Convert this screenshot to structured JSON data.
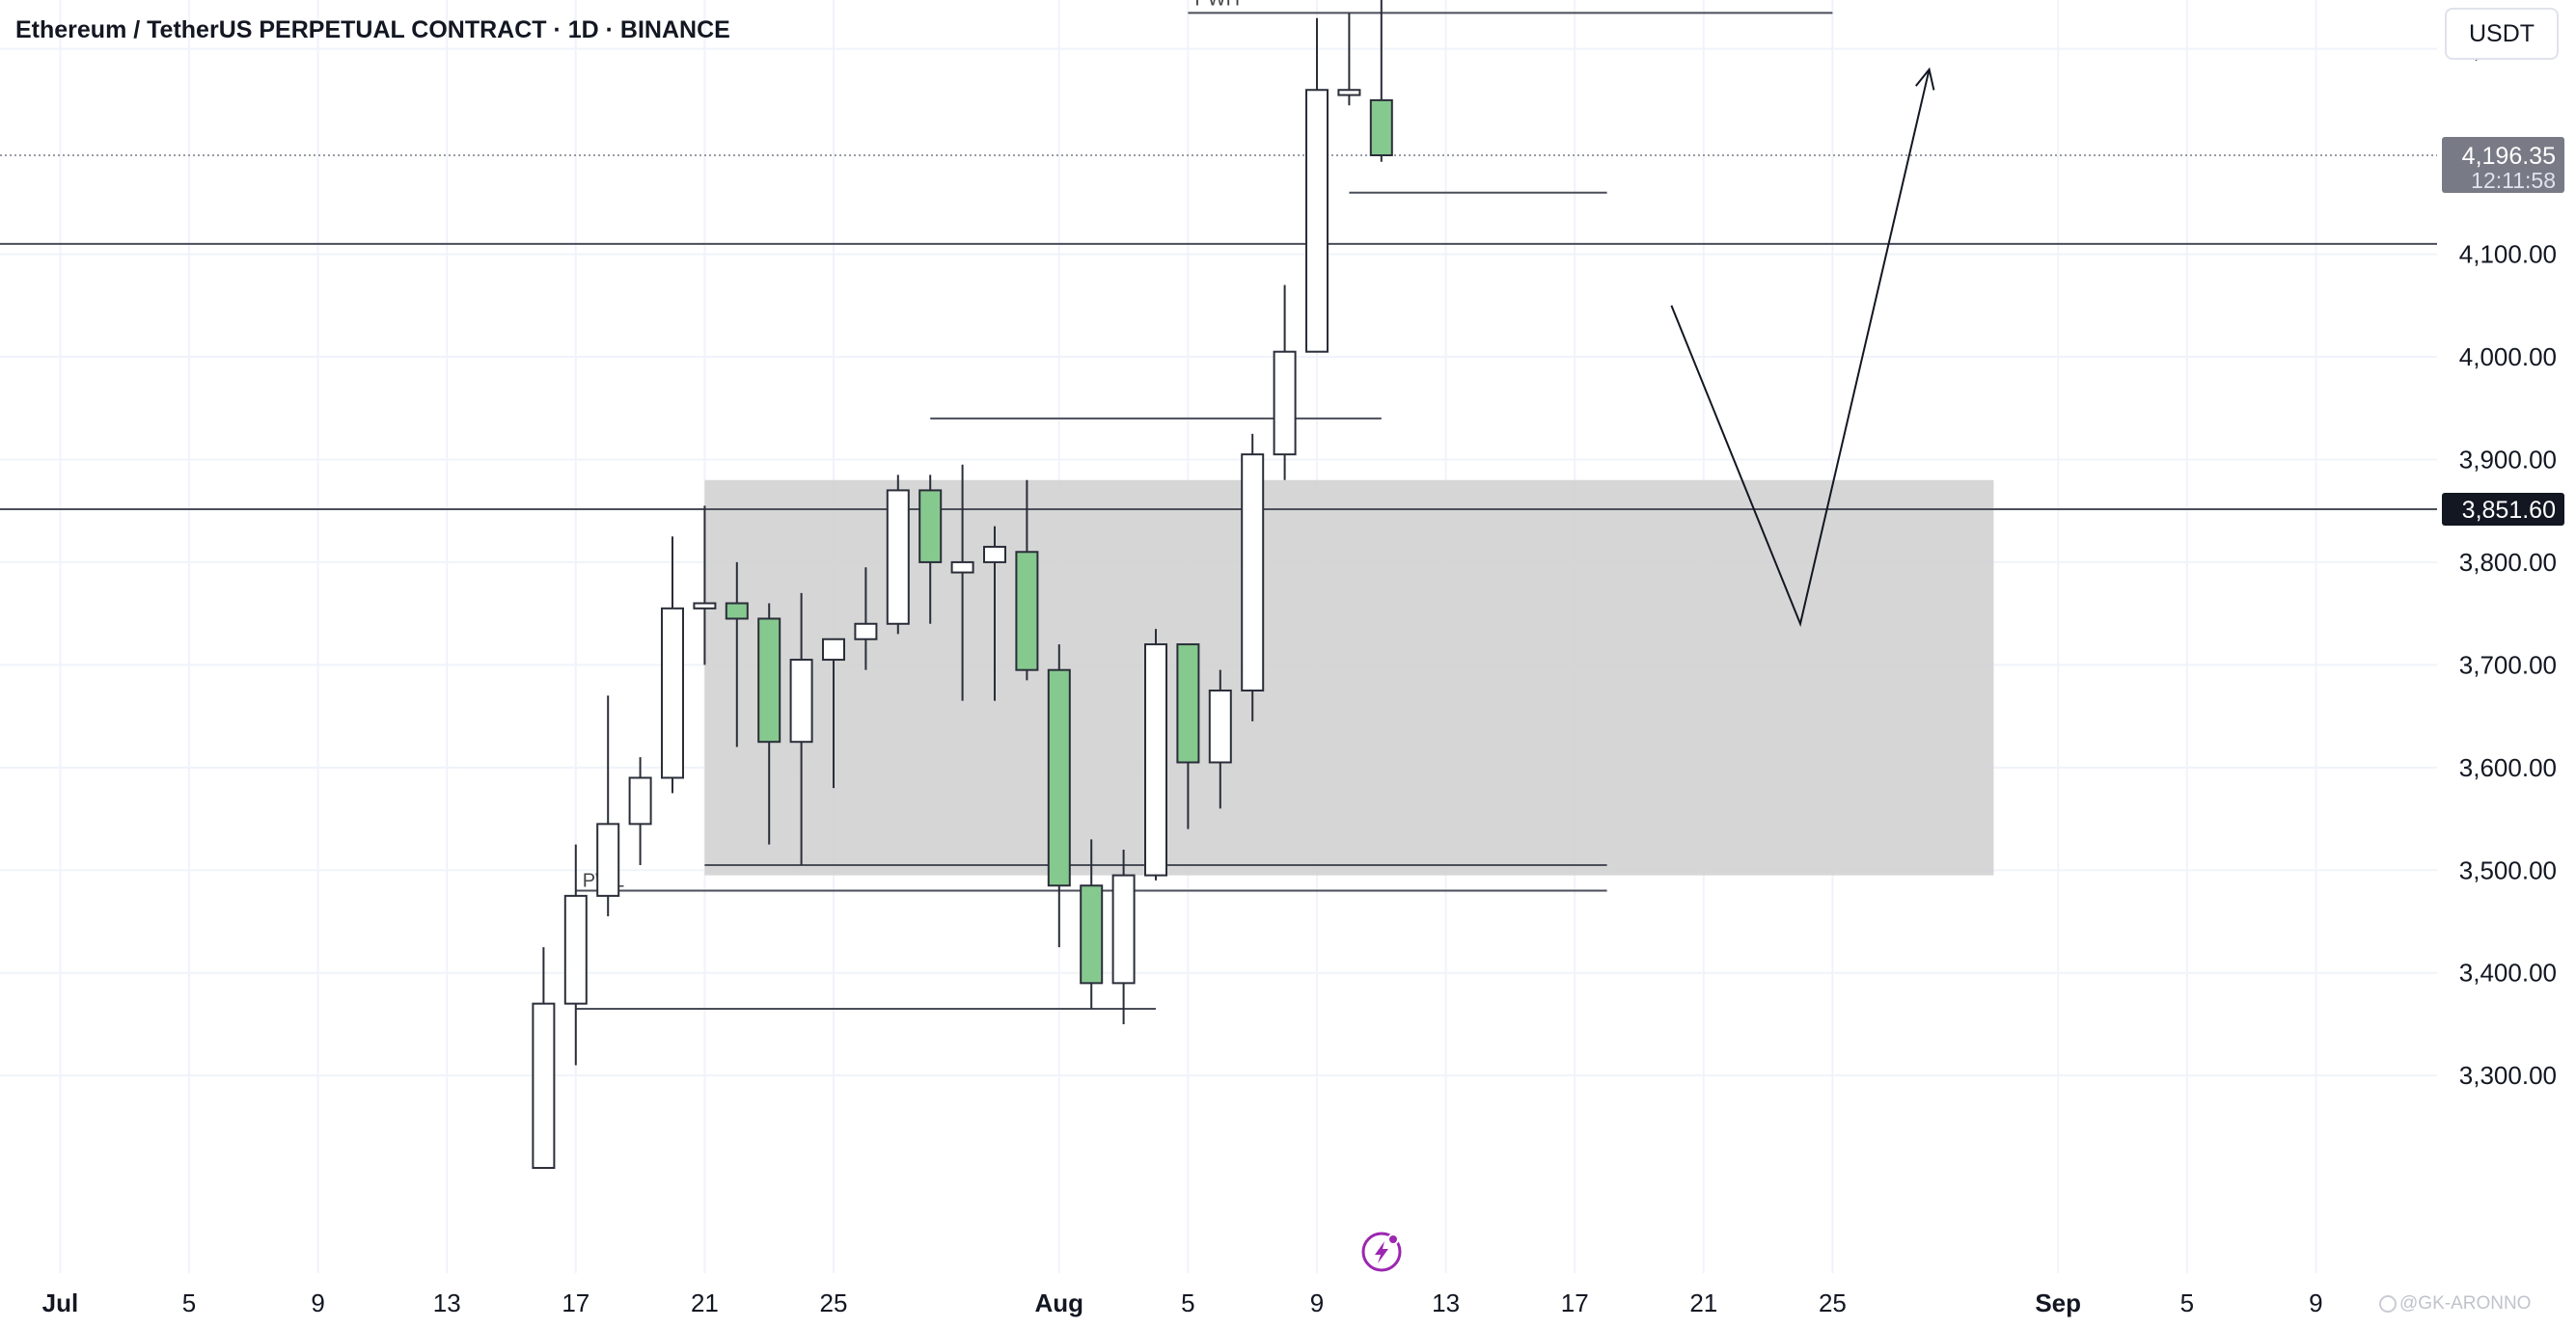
{
  "header": {
    "title": "Ethereum / TetherUS PERPETUAL CONTRACT · 1D · BINANCE",
    "currency": "USDT"
  },
  "watermark": "@GK-ARONNO",
  "colors": {
    "bull_fill": "#ffffff",
    "bear_fill": "#86c98f",
    "candle_stroke": "#2a2e39",
    "zone_fill": "#cfcfcf",
    "line": "#4a4e59",
    "price_label_bg": "#787b86",
    "marker_bg": "#131722",
    "brand_icon": "#9c27b0"
  },
  "chart_data": {
    "type": "candlestick",
    "symbol": "ETHUSDT.P",
    "interval": "1D",
    "ylim": [
      3210,
      4360
    ],
    "x_start": "2024-06-30",
    "x_end": "2024-09-11",
    "y_ticks": [
      {
        "value": 4300,
        "label": "4,300.00"
      },
      {
        "value": 4100,
        "label": "4,100.00"
      },
      {
        "value": 4000,
        "label": "4,000.00"
      },
      {
        "value": 3900,
        "label": "3,900.00"
      },
      {
        "value": 3800,
        "label": "3,800.00"
      },
      {
        "value": 3700,
        "label": "3,700.00"
      },
      {
        "value": 3600,
        "label": "3,600.00"
      },
      {
        "value": 3500,
        "label": "3,500.00"
      },
      {
        "value": 3400,
        "label": "3,400.00"
      },
      {
        "value": 3300,
        "label": "3,300.00"
      }
    ],
    "x_ticks": [
      {
        "date": "2024-07-01",
        "label": "Jul",
        "bold": true
      },
      {
        "date": "2024-07-05",
        "label": "5"
      },
      {
        "date": "2024-07-09",
        "label": "9"
      },
      {
        "date": "2024-07-13",
        "label": "13"
      },
      {
        "date": "2024-07-17",
        "label": "17"
      },
      {
        "date": "2024-07-21",
        "label": "21"
      },
      {
        "date": "2024-07-25",
        "label": "25"
      },
      {
        "date": "2024-08-01",
        "label": "Aug",
        "bold": true
      },
      {
        "date": "2024-08-05",
        "label": "5"
      },
      {
        "date": "2024-08-09",
        "label": "9"
      },
      {
        "date": "2024-08-13",
        "label": "13"
      },
      {
        "date": "2024-08-17",
        "label": "17"
      },
      {
        "date": "2024-08-21",
        "label": "21"
      },
      {
        "date": "2024-08-25",
        "label": "25"
      },
      {
        "date": "2024-09-01",
        "label": "Sep",
        "bold": true
      },
      {
        "date": "2024-09-05",
        "label": "5"
      },
      {
        "date": "2024-09-09",
        "label": "9"
      }
    ],
    "candles": [
      {
        "date": "2024-07-16",
        "open": 3210,
        "high": 3425,
        "low": 3210,
        "close": 3370
      },
      {
        "date": "2024-07-17",
        "open": 3370,
        "high": 3525,
        "low": 3310,
        "close": 3475
      },
      {
        "date": "2024-07-18",
        "open": 3475,
        "high": 3670,
        "low": 3455,
        "close": 3545
      },
      {
        "date": "2024-07-19",
        "open": 3545,
        "high": 3610,
        "low": 3505,
        "close": 3590
      },
      {
        "date": "2024-07-20",
        "open": 3590,
        "high": 3825,
        "low": 3575,
        "close": 3755
      },
      {
        "date": "2024-07-21",
        "open": 3755,
        "high": 3855,
        "low": 3700,
        "close": 3760
      },
      {
        "date": "2024-07-22",
        "open": 3760,
        "high": 3800,
        "low": 3620,
        "close": 3745
      },
      {
        "date": "2024-07-23",
        "open": 3745,
        "high": 3760,
        "low": 3525,
        "close": 3625
      },
      {
        "date": "2024-07-24",
        "open": 3625,
        "high": 3770,
        "low": 3505,
        "close": 3705
      },
      {
        "date": "2024-07-25",
        "open": 3705,
        "high": 3725,
        "low": 3580,
        "close": 3725
      },
      {
        "date": "2024-07-26",
        "open": 3725,
        "high": 3795,
        "low": 3695,
        "close": 3740
      },
      {
        "date": "2024-07-27",
        "open": 3740,
        "high": 3885,
        "low": 3730,
        "close": 3870
      },
      {
        "date": "2024-07-28",
        "open": 3870,
        "high": 3885,
        "low": 3740,
        "close": 3800
      },
      {
        "date": "2024-07-29",
        "open": 3790,
        "high": 3895,
        "low": 3665,
        "close": 3800
      },
      {
        "date": "2024-07-30",
        "open": 3800,
        "high": 3835,
        "low": 3665,
        "close": 3815
      },
      {
        "date": "2024-07-31",
        "open": 3810,
        "high": 3880,
        "low": 3685,
        "close": 3695
      },
      {
        "date": "2024-08-01",
        "open": 3695,
        "high": 3720,
        "low": 3425,
        "close": 3485
      },
      {
        "date": "2024-08-02",
        "open": 3485,
        "high": 3530,
        "low": 3365,
        "close": 3390
      },
      {
        "date": "2024-08-03",
        "open": 3390,
        "high": 3520,
        "low": 3350,
        "close": 3495
      },
      {
        "date": "2024-08-04",
        "open": 3495,
        "high": 3735,
        "low": 3490,
        "close": 3720
      },
      {
        "date": "2024-08-05",
        "open": 3720,
        "high": 3720,
        "low": 3540,
        "close": 3605
      },
      {
        "date": "2024-08-06",
        "open": 3605,
        "high": 3695,
        "low": 3560,
        "close": 3675
      },
      {
        "date": "2024-08-07",
        "open": 3675,
        "high": 3925,
        "low": 3645,
        "close": 3905
      },
      {
        "date": "2024-08-08",
        "open": 3905,
        "high": 4070,
        "low": 3880,
        "close": 4005
      },
      {
        "date": "2024-08-09",
        "open": 4005,
        "high": 4330,
        "low": 4005,
        "close": 4260
      },
      {
        "date": "2024-08-10",
        "open": 4255,
        "high": 4335,
        "low": 4245,
        "close": 4260
      },
      {
        "date": "2024-08-11",
        "open": 4250,
        "high": 4350,
        "low": 4190,
        "close": 4196.35
      }
    ],
    "horizontal_lines": [
      {
        "price": 4110,
        "extends": "full"
      },
      {
        "price": 3851.6,
        "extends": "full"
      }
    ],
    "segments": [
      {
        "name": "pwh-line",
        "label": "PWH",
        "price": 4335,
        "from": "2024-08-05",
        "to": "2024-08-25"
      },
      {
        "name": "pwl-line",
        "label": "PWL",
        "price": 3480,
        "from": "2024-07-17",
        "to": "2024-08-18"
      },
      {
        "name": "support-line-3505",
        "price": 3505,
        "from": "2024-07-21",
        "to": "2024-08-18"
      },
      {
        "name": "swing-high-line-3940",
        "price": 3940,
        "from": "2024-07-28",
        "to": "2024-08-11"
      },
      {
        "name": "swing-low-line-3365",
        "price": 3365,
        "from": "2024-07-17",
        "to": "2024-08-04"
      },
      {
        "name": "level-line-4160",
        "price": 4160,
        "from": "2024-08-10",
        "to": "2024-08-18"
      }
    ],
    "zone": {
      "from": "2024-07-21",
      "to": "2024-08-30",
      "top": 3880,
      "bottom": 3495
    },
    "projection_path": [
      {
        "date": "2024-08-20",
        "price": 4050
      },
      {
        "date": "2024-08-24",
        "price": 3740
      },
      {
        "date": "2024-08-28",
        "price": 4280
      }
    ],
    "current_price": {
      "value": 4196.35,
      "label": "4,196.35",
      "countdown": "12:11:58"
    },
    "marker": {
      "value": 3851.6,
      "label": "3,851.60"
    }
  }
}
